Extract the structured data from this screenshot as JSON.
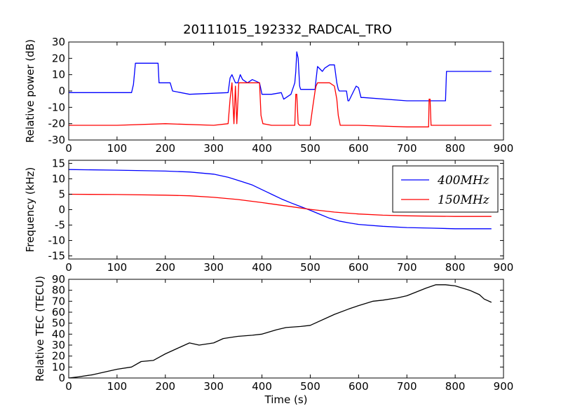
{
  "figure": {
    "title": "20111015_192332_RADCAL_TRO"
  },
  "chart_data": [
    {
      "type": "line",
      "title": "20111015_192332_RADCAL_TRO",
      "xlabel": "",
      "ylabel": "Relative power (dB)",
      "xlim": [
        0,
        900
      ],
      "ylim": [
        -30,
        30
      ],
      "xticks": [
        0,
        100,
        200,
        300,
        400,
        500,
        600,
        700,
        800,
        900
      ],
      "yticks": [
        -30,
        -20,
        -10,
        0,
        10,
        20,
        30
      ],
      "grid": false,
      "series": [
        {
          "color": "#0000ff",
          "x": [
            0,
            130,
            134,
            138,
            185,
            187,
            190,
            210,
            215,
            250,
            330,
            334,
            338,
            345,
            350,
            355,
            360,
            370,
            380,
            395,
            400,
            420,
            440,
            445,
            460,
            468,
            470,
            472,
            475,
            478,
            480,
            500,
            510,
            512,
            515,
            525,
            530,
            540,
            550,
            555,
            558,
            560,
            575,
            578,
            580,
            590,
            595,
            600,
            605,
            610,
            700,
            780,
            782,
            785,
            875
          ],
          "y": [
            -1,
            -1,
            4,
            17,
            17,
            5,
            5,
            5,
            0,
            -2,
            -1,
            8,
            10,
            5,
            5,
            10,
            7,
            5,
            7,
            5,
            -2,
            -2,
            -1,
            -5,
            -2,
            5,
            12,
            24,
            20,
            3,
            1,
            1,
            1,
            7,
            15,
            12,
            14,
            16,
            16,
            5,
            1,
            0,
            0,
            -6,
            -6,
            0,
            3,
            2,
            -4,
            -4,
            -6,
            -6,
            12,
            12,
            12
          ]
        },
        {
          "color": "#ff0000",
          "x": [
            0,
            100,
            200,
            300,
            330,
            334,
            338,
            342,
            345,
            348,
            352,
            356,
            360,
            380,
            395,
            398,
            402,
            420,
            468,
            470,
            472,
            475,
            478,
            500,
            505,
            510,
            512,
            515,
            520,
            540,
            550,
            555,
            558,
            562,
            600,
            700,
            745,
            746,
            748,
            750,
            800,
            875
          ],
          "y": [
            -21,
            -21,
            -20,
            -21,
            -20,
            -5,
            5,
            -20,
            3,
            -20,
            5,
            5,
            5,
            5,
            5,
            -15,
            -20,
            -21,
            -21,
            -2,
            -2,
            -20,
            -21,
            -21,
            -10,
            0,
            3,
            5,
            5,
            5,
            3,
            -5,
            -15,
            -21,
            -21,
            -22,
            -22,
            -5,
            -5,
            -21,
            -21,
            -21
          ]
        }
      ]
    },
    {
      "type": "line",
      "title": "",
      "xlabel": "",
      "ylabel": "Frequency (kHz)",
      "xlim": [
        0,
        900
      ],
      "ylim": [
        -16,
        16
      ],
      "xticks": [
        0,
        100,
        200,
        300,
        400,
        500,
        600,
        700,
        800,
        900
      ],
      "yticks": [
        -15,
        -10,
        -5,
        0,
        5,
        10,
        15
      ],
      "grid": false,
      "legend_position": "top-right",
      "series": [
        {
          "name": "400MHz",
          "color": "#0000ff",
          "x": [
            0,
            100,
            200,
            250,
            300,
            330,
            360,
            380,
            400,
            420,
            440,
            460,
            480,
            500,
            520,
            540,
            560,
            580,
            600,
            650,
            700,
            750,
            800,
            875
          ],
          "y": [
            13,
            12.8,
            12.5,
            12.2,
            11.5,
            10.5,
            9,
            8,
            6.5,
            5,
            3.5,
            2.2,
            1,
            -0.2,
            -1.5,
            -2.8,
            -3.7,
            -4.3,
            -4.8,
            -5.4,
            -5.8,
            -6.0,
            -6.2,
            -6.2
          ]
        },
        {
          "name": "150MHz",
          "color": "#ff0000",
          "x": [
            0,
            100,
            200,
            250,
            300,
            350,
            400,
            450,
            500,
            550,
            600,
            650,
            700,
            750,
            800,
            875
          ],
          "y": [
            5,
            4.9,
            4.7,
            4.5,
            4.0,
            3.3,
            2.3,
            1.2,
            0.1,
            -0.8,
            -1.4,
            -1.8,
            -2.0,
            -2.1,
            -2.2,
            -2.2
          ]
        }
      ]
    },
    {
      "type": "line",
      "title": "",
      "xlabel": "Time (s)",
      "ylabel": "Relative TEC (TECU)",
      "xlim": [
        0,
        900
      ],
      "ylim": [
        0,
        90
      ],
      "xticks": [
        0,
        100,
        200,
        300,
        400,
        500,
        600,
        700,
        800,
        900
      ],
      "yticks": [
        0,
        10,
        20,
        30,
        40,
        50,
        60,
        70,
        80,
        90
      ],
      "grid": false,
      "series": [
        {
          "color": "#000000",
          "x": [
            0,
            20,
            50,
            100,
            130,
            150,
            175,
            200,
            230,
            250,
            270,
            300,
            320,
            350,
            380,
            400,
            430,
            450,
            480,
            500,
            550,
            580,
            600,
            630,
            650,
            680,
            700,
            740,
            760,
            780,
            800,
            830,
            850,
            860,
            875
          ],
          "y": [
            0,
            1,
            3,
            8,
            10,
            15,
            16,
            22,
            28,
            32,
            30,
            32,
            36,
            38,
            39,
            40,
            44,
            46,
            47,
            48,
            58,
            63,
            66,
            70,
            71,
            73,
            75,
            82,
            85,
            85,
            84,
            80,
            76,
            72,
            69
          ]
        }
      ]
    }
  ]
}
